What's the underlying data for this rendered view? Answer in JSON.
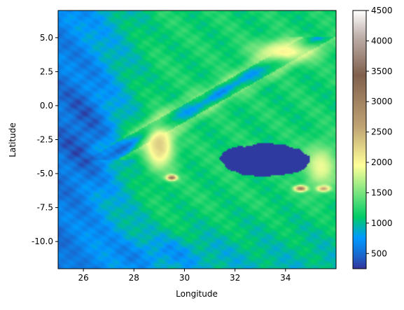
{
  "chart_data": {
    "type": "heatmap",
    "title": "",
    "xlabel": "Longitude",
    "ylabel": "Latitude",
    "xlim": [
      25.0,
      36.0
    ],
    "ylim": [
      -12.0,
      7.0
    ],
    "xticks": [
      26,
      28,
      30,
      32,
      34
    ],
    "yticks": [
      5.0,
      2.5,
      0.0,
      -2.5,
      -5.0,
      -7.5,
      -10.0
    ],
    "colorbar": {
      "colormap": "terrain",
      "vmin": 250,
      "vmax": 4500,
      "ticks": [
        500,
        1000,
        1500,
        2000,
        2500,
        3000,
        3500,
        4000,
        4500
      ]
    },
    "grid": false,
    "features": [
      {
        "name": "lake",
        "lon": 33.2,
        "lat": -4.0,
        "rx": 1.8,
        "ry": 1.2,
        "elev": 280
      },
      {
        "name": "western-rift-high",
        "lon": 29.0,
        "lat": -3.0,
        "rx": 0.7,
        "ry": 2.0,
        "elev": 2300
      },
      {
        "name": "peak-sw",
        "lon": 29.5,
        "lat": -5.3,
        "rx": 0.25,
        "ry": 0.25,
        "elev": 3200
      },
      {
        "name": "peak-e1",
        "lon": 34.6,
        "lat": -6.1,
        "rx": 0.3,
        "ry": 0.25,
        "elev": 3300
      },
      {
        "name": "peak-e2",
        "lon": 35.5,
        "lat": -6.1,
        "rx": 0.3,
        "ry": 0.25,
        "elev": 3000
      },
      {
        "name": "highland-ne",
        "lon": 34.0,
        "lat": 4.0,
        "rx": 1.5,
        "ry": 1.0,
        "elev": 2000
      },
      {
        "name": "highland-se",
        "lon": 35.4,
        "lat": -4.5,
        "rx": 0.8,
        "ry": 2.0,
        "elev": 1900
      },
      {
        "name": "lowland-west",
        "lon": 25.8,
        "lat": -2.0,
        "rx": 1.5,
        "ry": 6.0,
        "elev": 450
      },
      {
        "name": "lowland-south",
        "lon": 28.0,
        "lat": -11.0,
        "rx": 3.5,
        "ry": 1.5,
        "elev": 700
      }
    ]
  }
}
